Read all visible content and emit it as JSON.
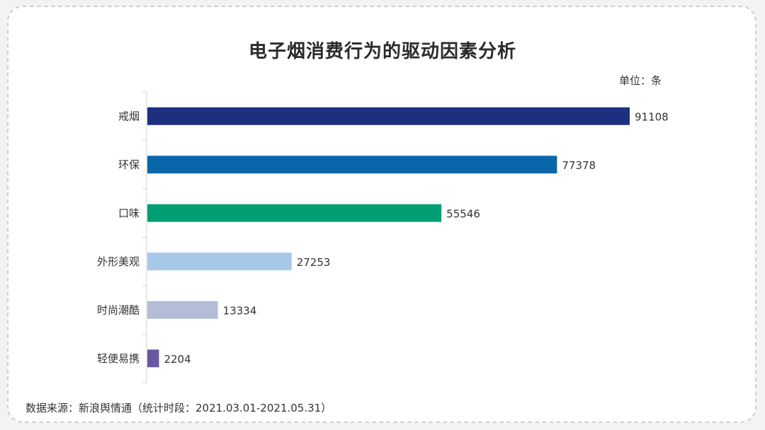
{
  "chart_data": {
    "type": "bar",
    "orientation": "horizontal",
    "title": "电子烟消费行为的驱动因素分析",
    "unit_label": "单位：条",
    "categories": [
      "戒烟",
      "环保",
      "口味",
      "外形美观",
      "时尚潮酷",
      "轻便易携"
    ],
    "values": [
      91108,
      77378,
      55546,
      27253,
      13334,
      2204
    ],
    "colors": [
      "#1f2f80",
      "#0a66aa",
      "#009f73",
      "#a8c8ea",
      "#b4bdd8",
      "#6a55a2"
    ],
    "xlim": [
      0,
      91108
    ],
    "grid": false,
    "legend": "none"
  },
  "source_note": "数据来源：新浪舆情通（统计时段：2021.03.01-2021.05.31）"
}
